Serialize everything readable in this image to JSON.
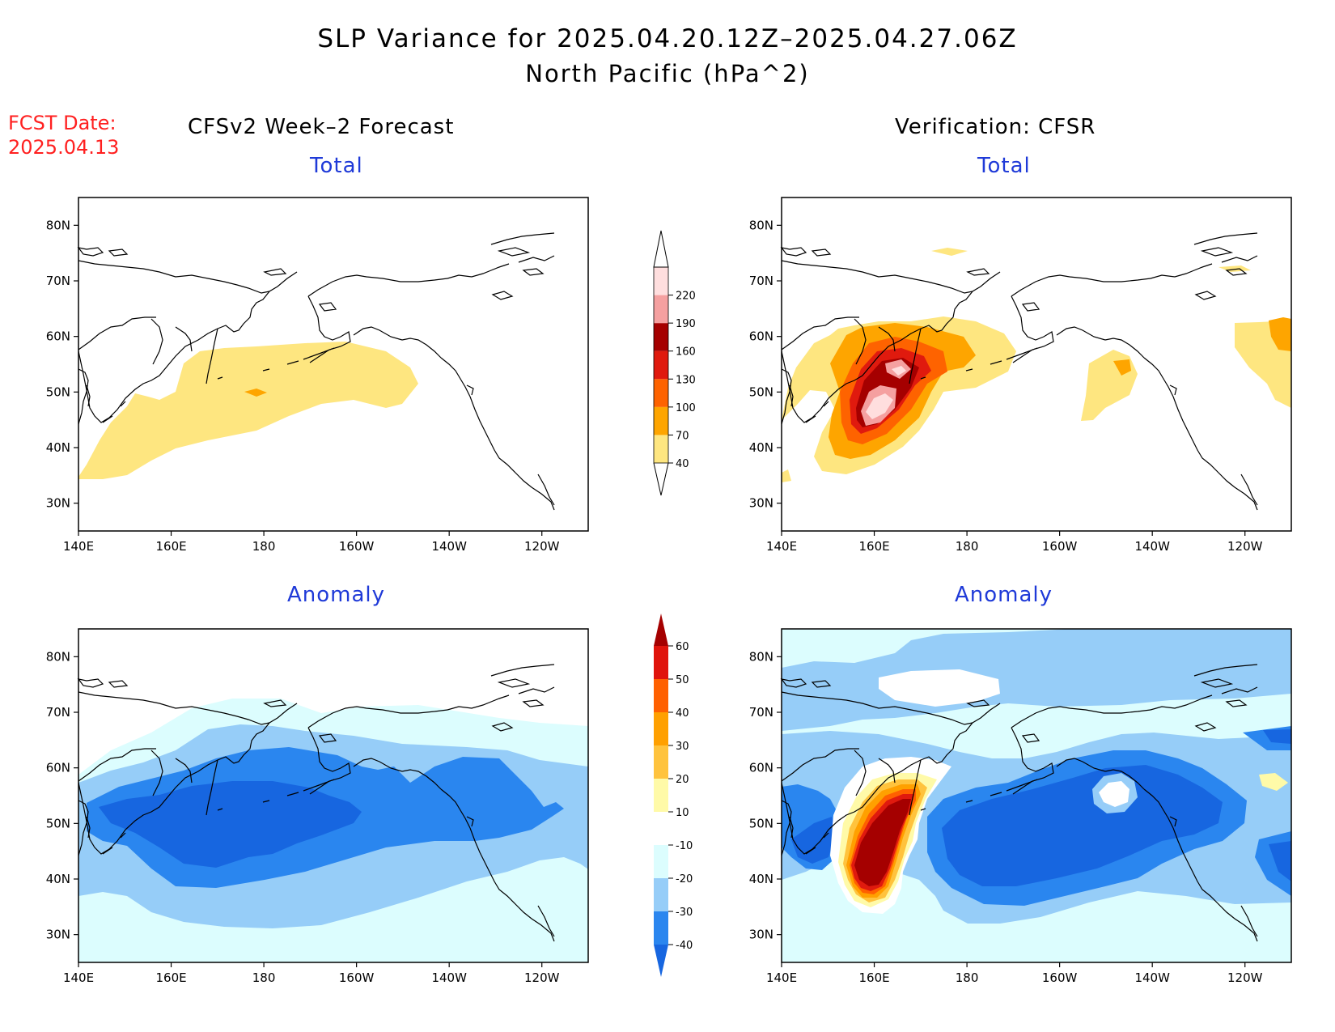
{
  "title": {
    "line1": "SLP Variance for 2025.04.20.12Z–2025.04.27.06Z",
    "line2": "North Pacific (hPa^2)"
  },
  "fcst": {
    "label": "FCST Date:",
    "date": "2025.04.13"
  },
  "columns": {
    "left": "CFSv2 Week–2 Forecast",
    "right": "Verification: CFSR"
  },
  "rows": {
    "top": "Total",
    "bottom": "Anomaly"
  },
  "axes": {
    "lon_labels": [
      "140E",
      "160E",
      "180",
      "160W",
      "140W",
      "120W"
    ],
    "lat_labels": [
      "80N",
      "70N",
      "60N",
      "50N",
      "40N",
      "30N"
    ]
  },
  "colorbar_total": {
    "levels": [
      "40",
      "70",
      "100",
      "130",
      "160",
      "190",
      "220"
    ],
    "colors": [
      "#fee680",
      "#fea500",
      "#fe6300",
      "#e01a0e",
      "#a50000",
      "#f5a0a0",
      "#ffdede"
    ]
  },
  "colorbar_anomaly": {
    "levels": [
      "-40",
      "-30",
      "-20",
      "-10",
      "10",
      "20",
      "30",
      "40",
      "50",
      "60"
    ],
    "colors": [
      "#1766e0",
      "#2a86ef",
      "#96cdf8",
      "#dcfdfe",
      "#ffffff",
      "#fffaa8",
      "#ffc33d",
      "#ffa000",
      "#ff6000",
      "#e0140c",
      "#a50000"
    ]
  },
  "map_data": {
    "projection": "lat-lon",
    "lon_range": [
      "140E",
      "110W"
    ],
    "lat_range": [
      "25N",
      "85N"
    ],
    "variable": "SLP variance (hPa^2)"
  }
}
